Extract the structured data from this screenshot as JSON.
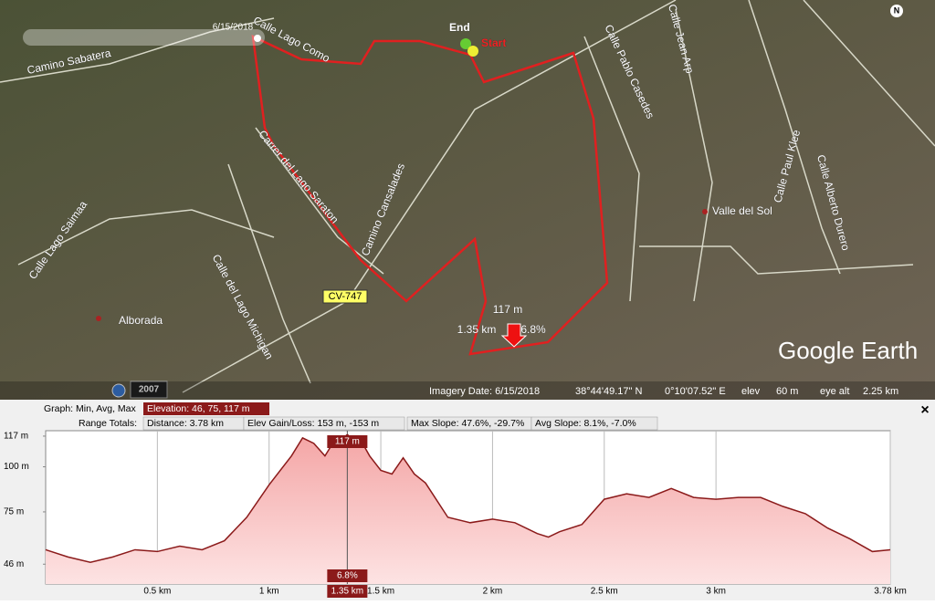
{
  "map": {
    "slider_date": "6/15/2018",
    "compass": "N",
    "start": "Start",
    "end": "End",
    "places": [
      "Alborada",
      "Valle del Sol"
    ],
    "roads": [
      "Camino Sabatera",
      "Calle Lago Como",
      "Carrer del Lago Saraton",
      "Camino Cansalades",
      "Calle Lago Saimaa",
      "Calle del Lago Michigan",
      "Calle Pablo Casedes",
      "Calle Jean Arp",
      "Calle Paul Klee",
      "Calle Alberto Durero"
    ],
    "road_shield": "CV-747",
    "history_year": "2007",
    "marker": {
      "elevation": "117 m",
      "distance": "1.35 km",
      "slope": "6.8%"
    },
    "brand": "Google Earth"
  },
  "status_bar": {
    "imagery_date": "Imagery Date: 6/15/2018",
    "lat": "38°44'49.17\" N",
    "lon": "0°10'07.52\" E",
    "elev_label": "elev",
    "elev": "60 m",
    "eye_alt_label": "eye alt",
    "eye_alt": "2.25 km"
  },
  "graph_header": {
    "graph_label": "Graph: Min, Avg, Max",
    "elevation": "Elevation: 46, 75, 117 m",
    "range_label": "Range Totals:",
    "distance": "Distance: 3.78 km",
    "gain_loss": "Elev Gain/Loss: 153 m, -153 m",
    "max_slope": "Max Slope: 47.6%, -29.7%",
    "avg_slope": "Avg Slope: 8.1%, -7.0%",
    "close": "×"
  },
  "chart_data": {
    "type": "area",
    "color": "#8b1a1a",
    "x": [
      0,
      0.1,
      0.2,
      0.3,
      0.4,
      0.5,
      0.6,
      0.7,
      0.8,
      0.9,
      1.0,
      1.1,
      1.15,
      1.2,
      1.25,
      1.3,
      1.35,
      1.4,
      1.45,
      1.5,
      1.55,
      1.6,
      1.65,
      1.7,
      1.8,
      1.9,
      2.0,
      2.1,
      2.2,
      2.25,
      2.3,
      2.4,
      2.5,
      2.6,
      2.7,
      2.8,
      2.9,
      3.0,
      3.1,
      3.2,
      3.3,
      3.4,
      3.5,
      3.6,
      3.7,
      3.78
    ],
    "values": [
      54,
      50,
      47,
      50,
      54,
      53,
      56,
      54,
      59,
      72,
      90,
      106,
      116,
      113,
      106,
      116,
      117,
      117,
      106,
      98,
      96,
      105,
      96,
      91,
      72,
      69,
      71,
      69,
      63,
      61,
      64,
      68,
      82,
      85,
      83,
      88,
      83,
      82,
      83,
      83,
      78,
      74,
      66,
      60,
      53,
      54
    ],
    "xlim": [
      0,
      3.78
    ],
    "ylim": [
      35,
      120
    ],
    "xticks": [
      {
        "value": 0.5,
        "label": "0.5 km"
      },
      {
        "value": 1,
        "label": "1 km"
      },
      {
        "value": 1.5,
        "label": "1.5 km"
      },
      {
        "value": 2,
        "label": "2 km"
      },
      {
        "value": 2.5,
        "label": "2.5 km"
      },
      {
        "value": 3,
        "label": "3 km"
      },
      {
        "value": 3.78,
        "label": "3.78 km"
      }
    ],
    "yticks": [
      {
        "value": 46,
        "label": "46 m"
      },
      {
        "value": 75,
        "label": "75 m"
      },
      {
        "value": 100,
        "label": "100 m"
      },
      {
        "value": 117,
        "label": "117 m"
      }
    ],
    "cursor": {
      "x": {
        "value": 1.35,
        "label": "1.35 km"
      },
      "elevation": {
        "value": 117,
        "label": "117 m"
      },
      "slope": "6.8%"
    }
  }
}
